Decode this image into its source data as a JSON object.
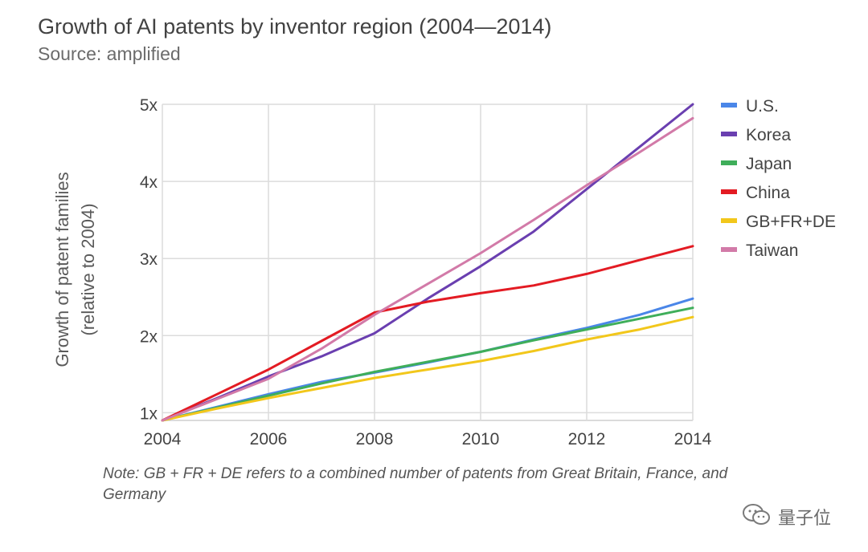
{
  "chart_data": {
    "type": "line",
    "title": "Growth of AI patents by inventor region (2004—2014)",
    "subtitle": "Source: amplified",
    "xlabel": "",
    "ylabel_line1": "Growth of patent families",
    "ylabel_line2": "(relative to 2004)",
    "x": [
      2004,
      2005,
      2006,
      2007,
      2008,
      2009,
      2010,
      2011,
      2012,
      2013,
      2014
    ],
    "x_ticks": [
      "2004",
      "2006",
      "2008",
      "2010",
      "2012",
      "2014"
    ],
    "y_ticks": [
      "1x",
      "2x",
      "3x",
      "4x",
      "5x"
    ],
    "xlim": [
      2004,
      2014
    ],
    "ylim": [
      0.9,
      5
    ],
    "grid": true,
    "legend_position": "right",
    "series": [
      {
        "name": "U.S.",
        "color": "#4a86e8",
        "values": [
          0.9,
          1.07,
          1.24,
          1.4,
          1.52,
          1.65,
          1.79,
          1.95,
          2.1,
          2.27,
          2.48
        ]
      },
      {
        "name": "Korea",
        "color": "#6a3fb0",
        "values": [
          0.9,
          1.18,
          1.47,
          1.73,
          2.03,
          2.48,
          2.9,
          3.35,
          3.9,
          4.45,
          5.0
        ]
      },
      {
        "name": "Japan",
        "color": "#3fae5a",
        "values": [
          0.9,
          1.06,
          1.22,
          1.38,
          1.53,
          1.66,
          1.79,
          1.94,
          2.08,
          2.22,
          2.36
        ]
      },
      {
        "name": "China",
        "color": "#e31b23",
        "values": [
          0.9,
          1.23,
          1.56,
          1.93,
          2.3,
          2.44,
          2.55,
          2.65,
          2.8,
          2.98,
          3.16
        ]
      },
      {
        "name": "GB+FR+DE",
        "color": "#f2c71b",
        "values": [
          0.9,
          1.05,
          1.19,
          1.32,
          1.45,
          1.56,
          1.67,
          1.8,
          1.95,
          2.08,
          2.24
        ]
      },
      {
        "name": "Taiwan",
        "color": "#d27aa8",
        "values": [
          0.9,
          1.17,
          1.44,
          1.83,
          2.27,
          2.67,
          3.07,
          3.5,
          3.95,
          4.38,
          4.82
        ]
      }
    ]
  },
  "note": "Note: GB + FR + DE refers to a combined number of patents from Great Britain, France, and Germany",
  "watermark": {
    "text": "量子位",
    "icon": "wechat-icon"
  }
}
